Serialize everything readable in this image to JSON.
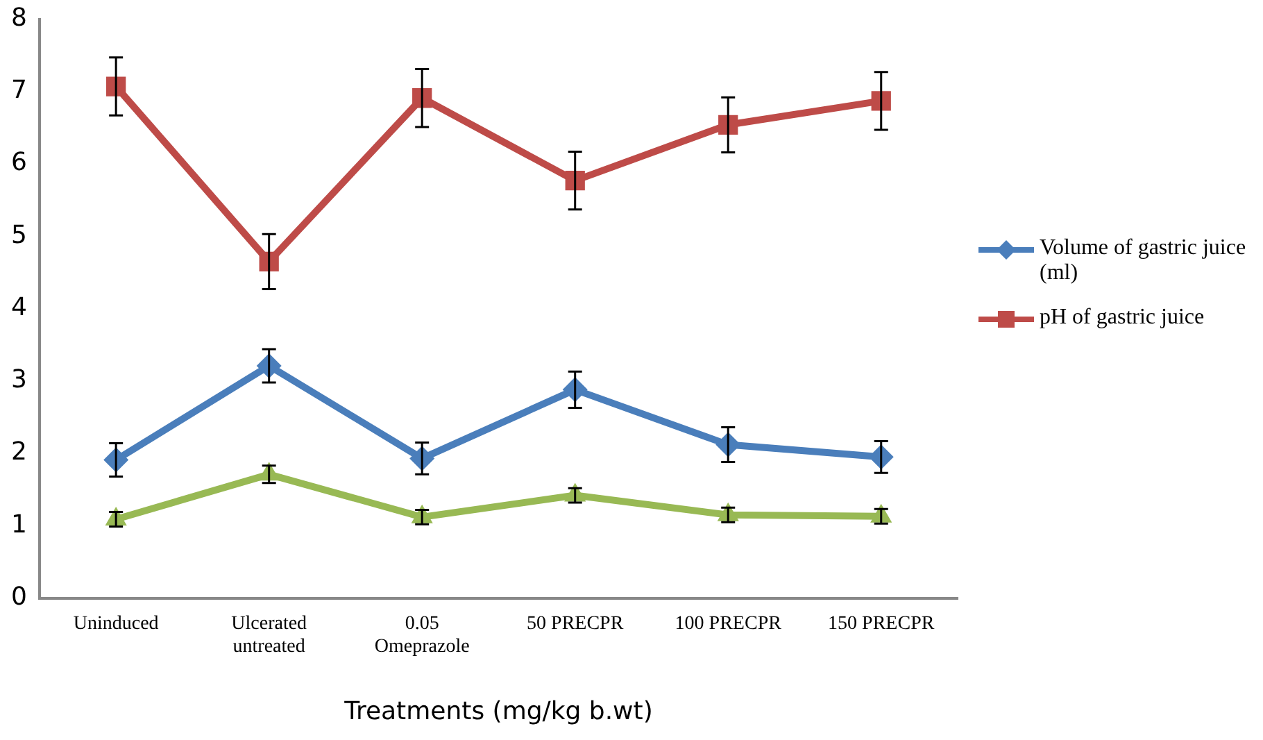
{
  "chart_data": {
    "type": "line",
    "xlabel": "Treatments (mg/kg b.wt)",
    "categories": [
      "Uninduced",
      "Ulcerated\nuntreated",
      "0.05\nOmeprazole",
      "50 PRECPR",
      "100 PRECPR",
      "150 PRECPR"
    ],
    "series": [
      {
        "name": "Volume of gastric juice (ml)",
        "color": "#4a7ebb",
        "marker": "diamond",
        "values": [
          1.91,
          3.21,
          1.93,
          2.88,
          2.12,
          1.95
        ],
        "errors": [
          0.23,
          0.23,
          0.22,
          0.25,
          0.24,
          0.22
        ]
      },
      {
        "name": "pH of gastric juice",
        "color": "#be4b48",
        "marker": "square",
        "values": [
          7.07,
          4.65,
          6.91,
          5.77,
          6.54,
          6.87
        ],
        "errors": [
          0.4,
          0.38,
          0.4,
          0.4,
          0.38,
          0.4
        ]
      },
      {
        "color": "#98b954",
        "marker": "triangle",
        "values": [
          1.09,
          1.71,
          1.12,
          1.42,
          1.15,
          1.13
        ],
        "errors": [
          0.1,
          0.12,
          0.1,
          0.1,
          0.1,
          0.1
        ]
      }
    ],
    "ylim": [
      0,
      8
    ],
    "yticks": [
      0,
      1,
      2,
      3,
      4,
      5,
      6,
      7,
      8
    ],
    "grid": false,
    "legend": "right"
  }
}
